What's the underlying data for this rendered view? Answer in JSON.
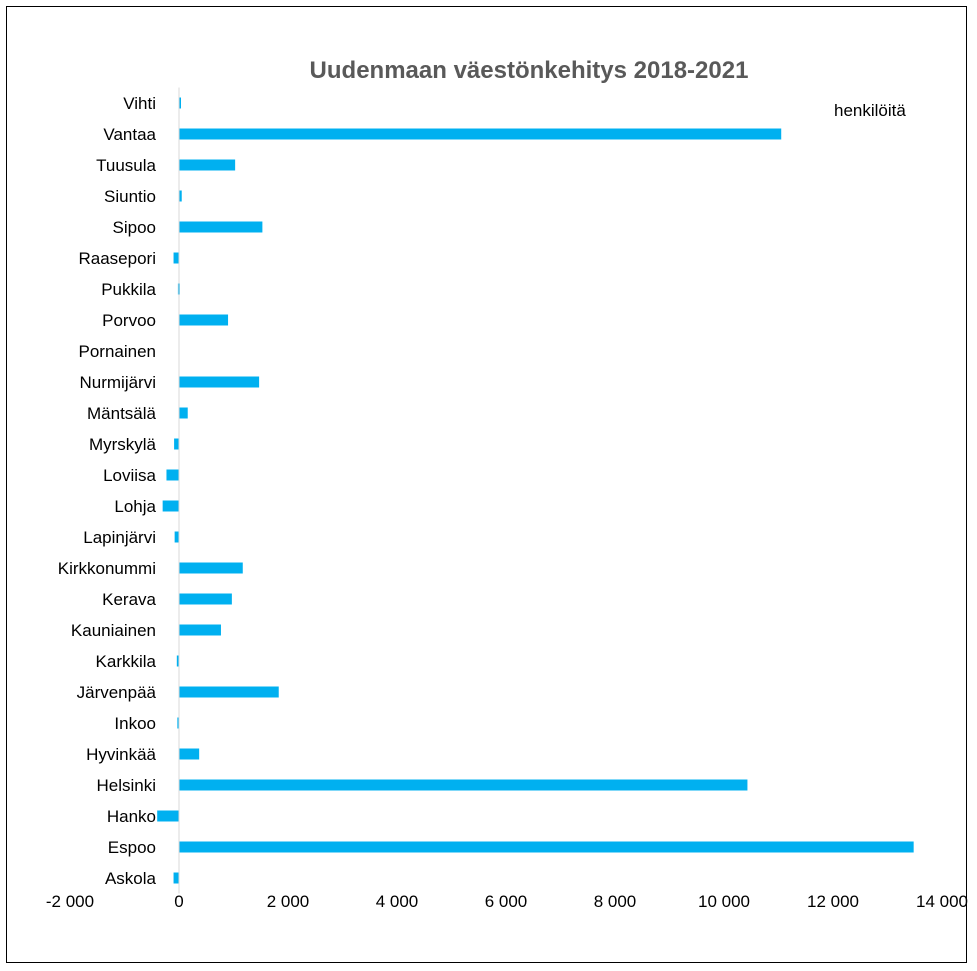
{
  "chart_data": {
    "type": "bar",
    "orientation": "horizontal",
    "title": "Uudenmaan väestönkehitys 2018-2021",
    "unit_label": "henkilöitä",
    "categories": [
      "Vihti",
      "Vantaa",
      "Tuusula",
      "Siuntio",
      "Sipoo",
      "Raasepori",
      "Pukkila",
      "Porvoo",
      "Pornainen",
      "Nurmijärvi",
      "Mäntsälä",
      "Myrskylä",
      "Loviisa",
      "Lohja",
      "Lapinjärvi",
      "Kirkkonummi",
      "Kerava",
      "Kauniainen",
      "Karkkila",
      "Järvenpää",
      "Inkoo",
      "Hyvinkää",
      "Helsinki",
      "Hanko",
      "Espoo",
      "Askola"
    ],
    "values": [
      30,
      11050,
      1030,
      50,
      1530,
      -100,
      -20,
      900,
      0,
      1470,
      160,
      -90,
      -230,
      -300,
      -80,
      1170,
      970,
      770,
      -40,
      1830,
      -30,
      370,
      10430,
      -400,
      13480,
      -100
    ],
    "xlim": [
      -2000,
      14000
    ],
    "x_ticks": [
      -2000,
      0,
      2000,
      4000,
      6000,
      8000,
      10000,
      12000,
      14000
    ],
    "x_tick_labels": [
      "-2 000",
      "0",
      "2 000",
      "4 000",
      "6 000",
      "8 000",
      "10 000",
      "12 000",
      "14 000"
    ],
    "bar_color": "#00B0F0",
    "grid": false,
    "legend": "none"
  }
}
